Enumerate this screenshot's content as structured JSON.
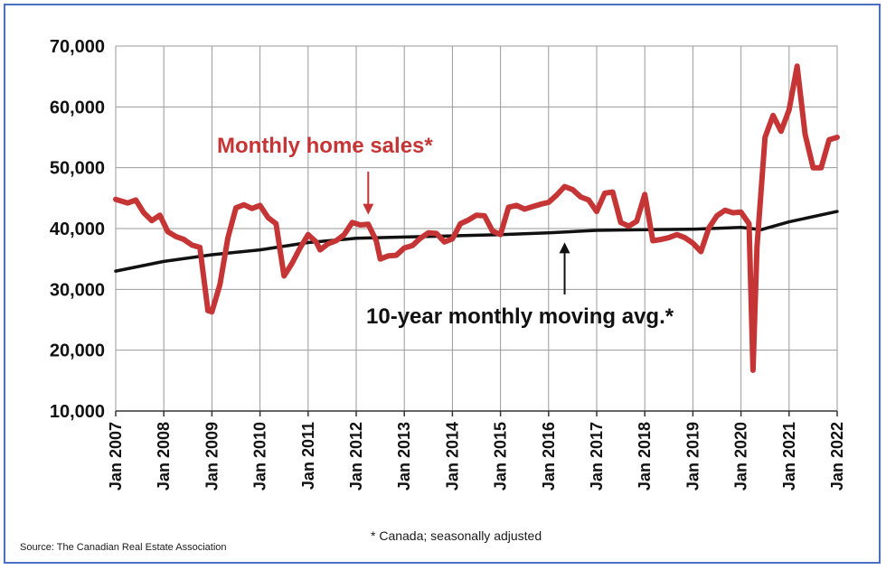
{
  "chart_data": {
    "type": "line",
    "title": "",
    "xlabel": "",
    "ylabel": "",
    "ylim": [
      10000,
      70000
    ],
    "xlim": [
      "2007-01",
      "2022-01"
    ],
    "grid": true,
    "y_ticks": [
      "10,000",
      "20,000",
      "30,000",
      "40,000",
      "50,000",
      "60,000",
      "70,000"
    ],
    "x_ticks": [
      "Jan 2007",
      "Jan 2008",
      "Jan 2009",
      "Jan 2010",
      "Jan 2011",
      "Jan 2012",
      "Jan 2013",
      "Jan 2014",
      "Jan 2015",
      "Jan 2016",
      "Jan 2017",
      "Jan 2018",
      "Jan 2019",
      "Jan 2020",
      "Jan 2021",
      "Jan 2022"
    ],
    "series": [
      {
        "name": "Monthly home sales*",
        "color": "#c63535",
        "points": [
          [
            "2007-01",
            44800
          ],
          [
            "2007-04",
            44200
          ],
          [
            "2007-06",
            44700
          ],
          [
            "2007-08",
            42600
          ],
          [
            "2007-10",
            41300
          ],
          [
            "2007-12",
            42200
          ],
          [
            "2008-02",
            39500
          ],
          [
            "2008-04",
            38700
          ],
          [
            "2008-06",
            38200
          ],
          [
            "2008-08",
            37300
          ],
          [
            "2008-10",
            36900
          ],
          [
            "2008-12",
            26500
          ],
          [
            "2009-01",
            26300
          ],
          [
            "2009-03",
            30800
          ],
          [
            "2009-05",
            38500
          ],
          [
            "2009-07",
            43400
          ],
          [
            "2009-09",
            43900
          ],
          [
            "2009-11",
            43300
          ],
          [
            "2010-01",
            43800
          ],
          [
            "2010-03",
            41800
          ],
          [
            "2010-05",
            40800
          ],
          [
            "2010-07",
            32200
          ],
          [
            "2010-09",
            34300
          ],
          [
            "2010-11",
            36800
          ],
          [
            "2011-01",
            39000
          ],
          [
            "2011-03",
            37800
          ],
          [
            "2011-04",
            36500
          ],
          [
            "2011-06",
            37500
          ],
          [
            "2011-08",
            38000
          ],
          [
            "2011-10",
            39000
          ],
          [
            "2011-12",
            41000
          ],
          [
            "2012-02",
            40600
          ],
          [
            "2012-04",
            40700
          ],
          [
            "2012-06",
            38000
          ],
          [
            "2012-07",
            35000
          ],
          [
            "2012-09",
            35500
          ],
          [
            "2012-11",
            35600
          ],
          [
            "2013-01",
            36800
          ],
          [
            "2013-03",
            37200
          ],
          [
            "2013-05",
            38400
          ],
          [
            "2013-07",
            39300
          ],
          [
            "2013-09",
            39200
          ],
          [
            "2013-11",
            37800
          ],
          [
            "2014-01",
            38300
          ],
          [
            "2014-03",
            40800
          ],
          [
            "2014-05",
            41400
          ],
          [
            "2014-07",
            42200
          ],
          [
            "2014-09",
            42100
          ],
          [
            "2014-11",
            39600
          ],
          [
            "2015-01",
            39000
          ],
          [
            "2015-03",
            43500
          ],
          [
            "2015-05",
            43800
          ],
          [
            "2015-07",
            43200
          ],
          [
            "2015-09",
            43600
          ],
          [
            "2015-11",
            44000
          ],
          [
            "2016-01",
            44300
          ],
          [
            "2016-03",
            45500
          ],
          [
            "2016-05",
            46900
          ],
          [
            "2016-07",
            46400
          ],
          [
            "2016-09",
            45200
          ],
          [
            "2016-11",
            44700
          ],
          [
            "2017-01",
            42800
          ],
          [
            "2017-03",
            45800
          ],
          [
            "2017-05",
            46000
          ],
          [
            "2017-07",
            41000
          ],
          [
            "2017-09",
            40400
          ],
          [
            "2017-11",
            41200
          ],
          [
            "2018-01",
            45600
          ],
          [
            "2018-03",
            38000
          ],
          [
            "2018-05",
            38200
          ],
          [
            "2018-07",
            38500
          ],
          [
            "2018-09",
            39000
          ],
          [
            "2018-11",
            38500
          ],
          [
            "2019-01",
            37600
          ],
          [
            "2019-03",
            36200
          ],
          [
            "2019-05",
            40100
          ],
          [
            "2019-07",
            42100
          ],
          [
            "2019-09",
            43000
          ],
          [
            "2019-11",
            42600
          ],
          [
            "2020-01",
            42700
          ],
          [
            "2020-03",
            40800
          ],
          [
            "2020-04",
            16700
          ],
          [
            "2020-05",
            37000
          ],
          [
            "2020-07",
            55000
          ],
          [
            "2020-09",
            58600
          ],
          [
            "2020-11",
            56000
          ],
          [
            "2021-01",
            59500
          ],
          [
            "2021-03",
            66700
          ],
          [
            "2021-05",
            55500
          ],
          [
            "2021-07",
            50000
          ],
          [
            "2021-09",
            50000
          ],
          [
            "2021-11",
            54600
          ],
          [
            "2022-01",
            55000
          ]
        ]
      },
      {
        "name": "10-year monthly moving avg.*",
        "color": "#111111",
        "points": [
          [
            "2007-01",
            33000
          ],
          [
            "2008-01",
            34600
          ],
          [
            "2009-01",
            35700
          ],
          [
            "2010-01",
            36500
          ],
          [
            "2011-01",
            37700
          ],
          [
            "2012-01",
            38400
          ],
          [
            "2013-01",
            38600
          ],
          [
            "2014-01",
            38800
          ],
          [
            "2015-01",
            39000
          ],
          [
            "2016-01",
            39300
          ],
          [
            "2017-01",
            39700
          ],
          [
            "2018-01",
            39800
          ],
          [
            "2019-01",
            39900
          ],
          [
            "2020-01",
            40200
          ],
          [
            "2020-06",
            39800
          ],
          [
            "2021-01",
            41100
          ],
          [
            "2022-01",
            42800
          ]
        ]
      }
    ],
    "annotations": [
      {
        "text": "Monthly home sales*",
        "color": "#c63535",
        "points_to": [
          "2012-04",
          40800
        ]
      },
      {
        "text": "10-year monthly moving avg.*",
        "color": "#111111",
        "points_to": [
          "2016-05",
          39500
        ]
      }
    ]
  },
  "footnote": "* Canada; seasonally adjusted",
  "source": "Source: The Canadian Real Estate Association"
}
